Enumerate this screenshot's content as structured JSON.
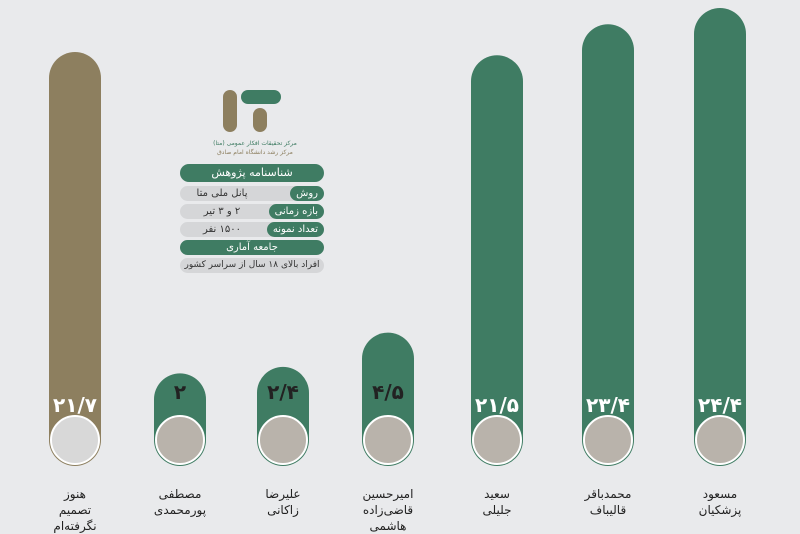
{
  "chart_data": {
    "type": "bar",
    "categories": [
      "هنوز\nتصمیم\nنگرفته‌ام",
      "مصطفی\nپورمحمدی",
      "علیرضا\nزاکانی",
      "امیرحسین\nقاضی‌زاده\nهاشمی",
      "سعید\nجلیلی",
      "محمدباقر\nقالیباف",
      "مسعود\nپزشکیان"
    ],
    "values": [
      21.7,
      2,
      2.4,
      4.5,
      21.5,
      23.4,
      24.4
    ],
    "value_labels": [
      "۲۱/۷",
      "۲",
      "۲/۴",
      "۴/۵",
      "۲۱/۵",
      "۲۳/۴",
      "۲۴/۴"
    ],
    "colors": [
      "#8d7f5f",
      "#3f7c63",
      "#3f7c63",
      "#3f7c63",
      "#3f7c63",
      "#3f7c63",
      "#3f7c63"
    ]
  },
  "info": {
    "org": "مرکز تحقیقات افکار عمومی (متا)",
    "org_sub": "مرکز رشد دانشگاه امام صادق",
    "title": "شناسنامه پژوهش",
    "rows": [
      [
        "روش",
        "پانل ملی متا"
      ],
      [
        "بازه زمانی",
        "۲ و ۳ تیر"
      ],
      [
        "تعداد نمونه",
        "۱۵۰۰ نفر"
      ]
    ],
    "population": "جامعه آماری",
    "population_value": "افراد بالای ۱۸ سال از سراسر کشور"
  }
}
